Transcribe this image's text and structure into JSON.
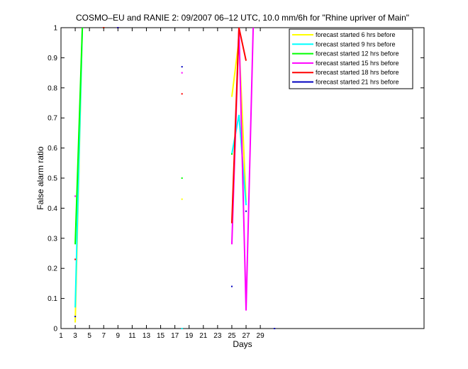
{
  "chart_data": {
    "type": "line",
    "title": "COSMO–EU and RANIE 2: 09/2007 06–12 UTC, 10.0 mm/6h for \"Rhine upriver of Main\"",
    "xlabel": "Days",
    "ylabel": "False alarm ratio",
    "xlim": [
      1,
      52
    ],
    "ylim": [
      0,
      1
    ],
    "x_ticks": [
      1,
      3,
      5,
      7,
      9,
      11,
      13,
      15,
      17,
      19,
      21,
      23,
      25,
      27,
      29
    ],
    "y_ticks": [
      0,
      0.1,
      0.2,
      0.3,
      0.4,
      0.5,
      0.6,
      0.7,
      0.8,
      0.9,
      1
    ],
    "grid": false,
    "legend_position": "top-right",
    "series": [
      {
        "name": "forecast started 6 hrs before",
        "color": "#ffff00",
        "points": [
          [
            3,
            0.02
          ],
          [
            4,
            1
          ],
          [
            18,
            0.43
          ],
          [
            25,
            0.77
          ],
          [
            26,
            0.96
          ],
          [
            27,
            0.42
          ]
        ]
      },
      {
        "name": "forecast started 9 hrs before",
        "color": "#00ffff",
        "points": [
          [
            3,
            0.07
          ],
          [
            4,
            1
          ],
          [
            18,
            0.0
          ],
          [
            25,
            0.58
          ],
          [
            26,
            0.71
          ],
          [
            27,
            0.41
          ]
        ]
      },
      {
        "name": "forecast started 12 hrs before",
        "color": "#00ff00",
        "points": [
          [
            3,
            0.28
          ],
          [
            4,
            1
          ],
          [
            7,
            1
          ],
          [
            18,
            0.5
          ],
          [
            25,
            0.58
          ]
        ]
      },
      {
        "name": "forecast started 15 hrs before",
        "color": "#ff00ff",
        "points": [
          [
            3,
            0.44
          ],
          [
            9,
            1
          ],
          [
            18,
            0.85
          ],
          [
            25,
            0.28
          ],
          [
            26,
            1
          ],
          [
            27,
            0.06
          ],
          [
            28,
            1
          ]
        ]
      },
      {
        "name": "forecast started 18 hrs before",
        "color": "#ff0000",
        "points": [
          [
            3,
            0.23
          ],
          [
            7,
            1
          ],
          [
            18,
            0.78
          ],
          [
            25,
            0.35
          ],
          [
            26,
            1
          ],
          [
            27,
            0.89
          ]
        ]
      },
      {
        "name": "forecast started 21 hrs before",
        "color": "#0000bf",
        "points": [
          [
            3,
            0.04
          ],
          [
            9,
            1
          ],
          [
            18,
            0.87
          ],
          [
            25,
            0.14
          ],
          [
            27,
            0.39
          ],
          [
            31,
            0.0
          ]
        ]
      }
    ]
  }
}
